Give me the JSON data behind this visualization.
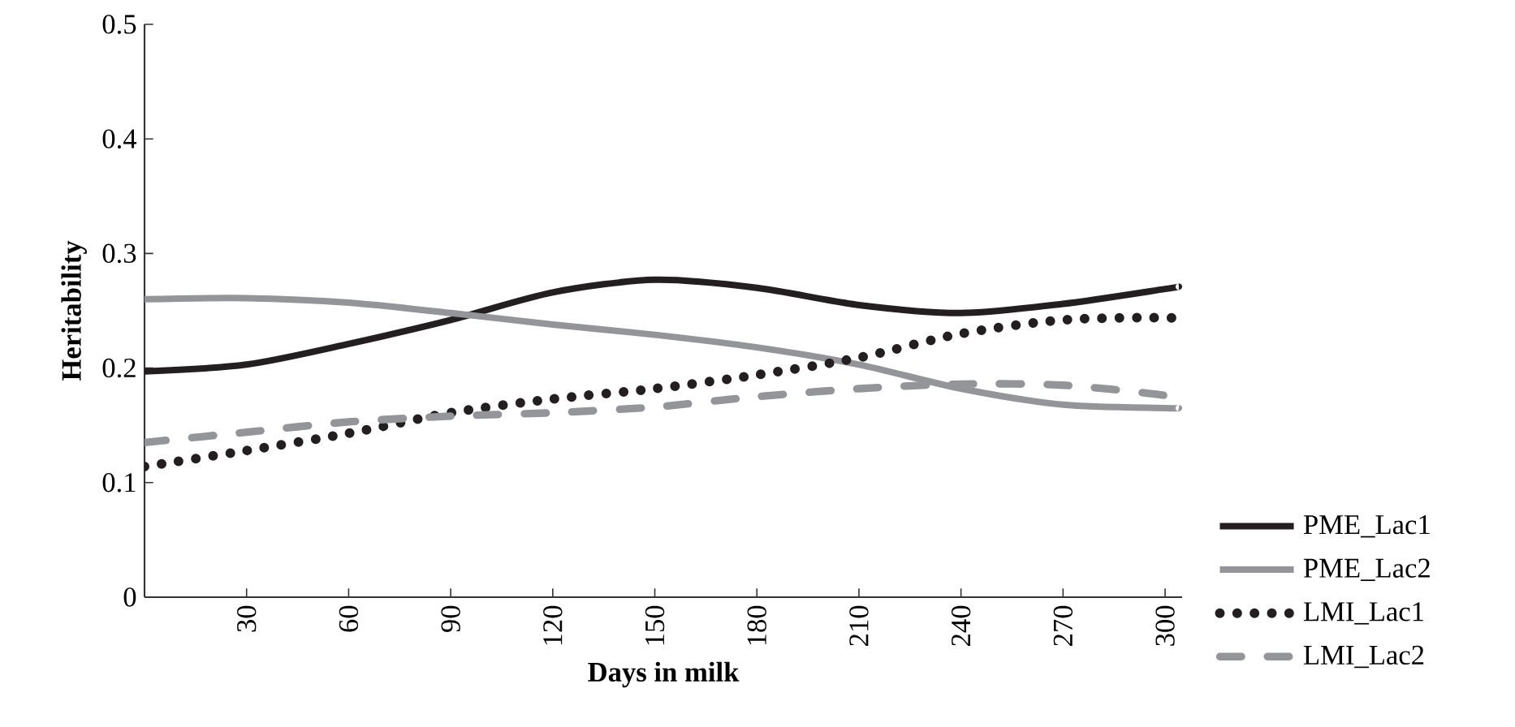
{
  "chart_data": {
    "type": "line",
    "xlabel": "Days in milk",
    "ylabel": "Heritability",
    "x": [
      0,
      30,
      60,
      90,
      120,
      150,
      180,
      210,
      240,
      270,
      300,
      304
    ],
    "series": [
      {
        "name": "PME_Lac1",
        "color": "#231f20",
        "line_style": "solid",
        "values": [
          0.197,
          0.203,
          0.221,
          0.242,
          0.266,
          0.277,
          0.27,
          0.255,
          0.248,
          0.256,
          0.269,
          0.271
        ]
      },
      {
        "name": "PME_Lac2",
        "color": "#939598",
        "line_style": "solid",
        "values": [
          0.26,
          0.261,
          0.257,
          0.248,
          0.238,
          0.229,
          0.218,
          0.203,
          0.182,
          0.168,
          0.165,
          0.165
        ]
      },
      {
        "name": "LMI_Lac1",
        "color": "#231f20",
        "line_style": "dotted",
        "values": [
          0.114,
          0.128,
          0.143,
          0.161,
          0.173,
          0.182,
          0.194,
          0.209,
          0.23,
          0.242,
          0.244,
          0.241
        ]
      },
      {
        "name": "LMI_Lac2",
        "color": "#939598",
        "line_style": "dashed",
        "values": [
          0.135,
          0.144,
          0.153,
          0.158,
          0.161,
          0.166,
          0.175,
          0.182,
          0.186,
          0.185,
          0.176,
          0.17
        ]
      }
    ],
    "xlim": [
      0,
      305
    ],
    "xticks": [
      30,
      60,
      90,
      120,
      150,
      180,
      210,
      240,
      270,
      300
    ],
    "ylim": [
      0,
      0.5
    ],
    "yticks": [
      0,
      0.1,
      0.2,
      0.3,
      0.4,
      0.5
    ],
    "grid": false,
    "legend": "right",
    "marker": "none"
  }
}
